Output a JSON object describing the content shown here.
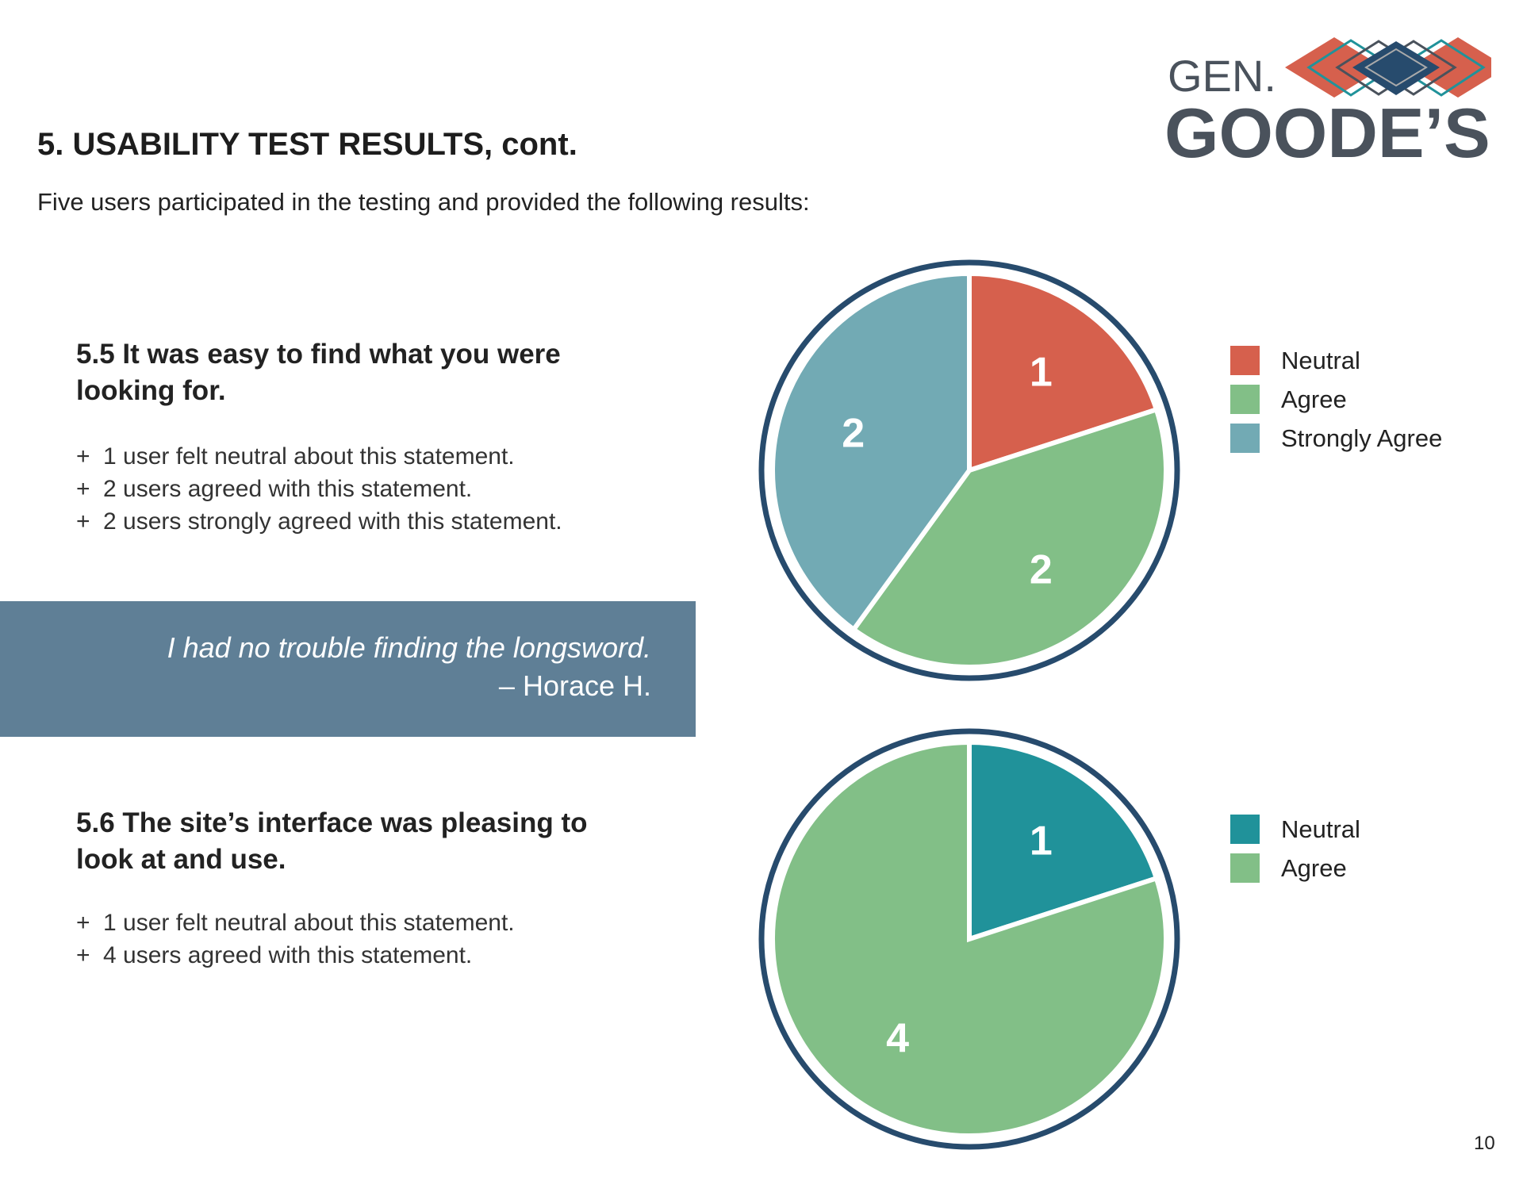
{
  "header": {
    "title": "5.  USABILITY TEST RESULTS, cont.",
    "subtitle": "Five users participated in the testing and provided the following results:",
    "logo_text": [
      "GEN.",
      "GOODE’S"
    ]
  },
  "questions": [
    {
      "heading": "5.5  It was easy to find what you were looking for.",
      "bullets": [
        "1 user felt neutral about this statement.",
        "2 users agreed with this statement.",
        "2 users strongly agreed with this statement."
      ]
    },
    {
      "heading": "5.6  The site’s interface was pleasing to look at and use.",
      "bullets": [
        "1 user felt neutral about this statement.",
        "4 users agreed with this statement."
      ]
    }
  ],
  "bullet_symbol": "+",
  "quote": {
    "text": "I had no trouble finding the longsword.",
    "attribution": "– Horace H."
  },
  "colors": {
    "quote_bg": "#5f7f96",
    "ring": "#274b6d",
    "neutral_red": "#d6604d",
    "agree": "#82bf87",
    "strongly_agree": "#72aab4",
    "neutral_teal": "#20929a"
  },
  "chart_data": [
    {
      "type": "pie",
      "title": "5.5",
      "categories": [
        "Neutral",
        "Agree",
        "Strongly Agree"
      ],
      "values": [
        1,
        2,
        2
      ],
      "colors": [
        "#d6604d",
        "#82bf87",
        "#72aab4"
      ],
      "legend": "right"
    },
    {
      "type": "pie",
      "title": "5.6",
      "categories": [
        "Neutral",
        "Agree"
      ],
      "values": [
        1,
        4
      ],
      "colors": [
        "#20929a",
        "#82bf87"
      ],
      "legend": "right"
    }
  ],
  "page_number": "10"
}
